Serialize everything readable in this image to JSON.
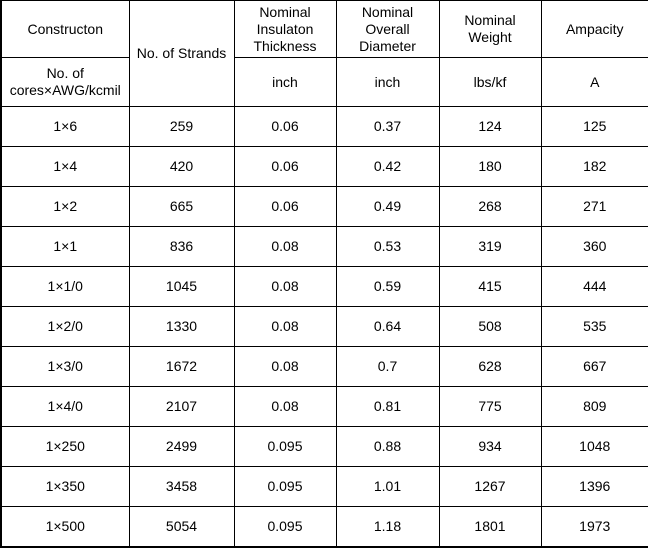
{
  "table": {
    "header": {
      "construction_title": "Constructon",
      "construction_sub": "No. of\ncores×AWG/kcmil",
      "strands_title": "No. of Strands",
      "insulation_title": "Nominal\nInsulaton\nThickness",
      "insulation_unit": "inch",
      "diameter_title": "Nominal\nOverall\nDiameter",
      "diameter_unit": "inch",
      "weight_title": "Nominal\nWeight",
      "weight_unit": "lbs/kf",
      "ampacity_title": "Ampacity",
      "ampacity_unit": "A"
    },
    "rows": [
      [
        "1×6",
        "259",
        "0.06",
        "0.37",
        "124",
        "125"
      ],
      [
        "1×4",
        "420",
        "0.06",
        "0.42",
        "180",
        "182"
      ],
      [
        "1×2",
        "665",
        "0.06",
        "0.49",
        "268",
        "271"
      ],
      [
        "1×1",
        "836",
        "0.08",
        "0.53",
        "319",
        "360"
      ],
      [
        "1×1/0",
        "1045",
        "0.08",
        "0.59",
        "415",
        "444"
      ],
      [
        "1×2/0",
        "1330",
        "0.08",
        "0.64",
        "508",
        "535"
      ],
      [
        "1×3/0",
        "1672",
        "0.08",
        "0.7",
        "628",
        "667"
      ],
      [
        "1×4/0",
        "2107",
        "0.08",
        "0.81",
        "775",
        "809"
      ],
      [
        "1×250",
        "2499",
        "0.095",
        "0.88",
        "934",
        "1048"
      ],
      [
        "1×350",
        "3458",
        "0.095",
        "1.01",
        "1267",
        "1396"
      ],
      [
        "1×500",
        "5054",
        "0.095",
        "1.18",
        "1801",
        "1973"
      ]
    ],
    "colors": {
      "border": "#000000",
      "text": "#000000",
      "background": "#ffffff"
    }
  }
}
